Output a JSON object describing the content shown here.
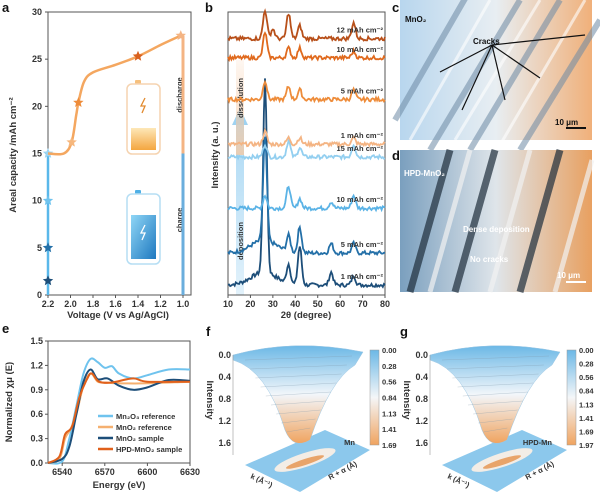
{
  "panels": {
    "a": "a",
    "b": "b",
    "c": "c",
    "d": "d",
    "e": "e",
    "f": "f",
    "g": "g"
  },
  "chart_data": [
    {
      "id": "a",
      "type": "line",
      "xlabel": "Voltage (V vs Ag/AgCl)",
      "ylabel": "Areal capacity /mAh cm⁻²",
      "xlim": [
        2.2,
        1.0
      ],
      "ylim": [
        0,
        30
      ],
      "xticks": [
        "2.2",
        "2.0",
        "1.8",
        "1.6",
        "1.4",
        "1.2",
        "1.0"
      ],
      "yticks": [
        "0",
        "5",
        "10",
        "15",
        "20",
        "25",
        "30"
      ],
      "annotations": {
        "discharge": "discharge",
        "charge": "charge"
      },
      "series": [
        {
          "name": "charge",
          "color": "#5ab8ea",
          "points": [
            [
              2.2,
              0
            ],
            [
              2.2,
              15
            ]
          ],
          "stars": [
            [
              2.2,
              1.5,
              "#1d4e79"
            ],
            [
              2.2,
              5,
              "#2470a8"
            ],
            [
              2.2,
              10,
              "#6fc3ee"
            ],
            [
              2.2,
              15,
              "#9bd4f2"
            ]
          ]
        },
        {
          "name": "discharge",
          "color": "#f4a760",
          "points": [
            [
              2.2,
              15
            ],
            [
              2.06,
              15
            ],
            [
              1.99,
              16.2
            ],
            [
              1.95,
              19
            ],
            [
              1.93,
              20.4
            ],
            [
              1.88,
              22.6
            ],
            [
              1.8,
              23.6
            ],
            [
              1.6,
              24.4
            ],
            [
              1.4,
              25.3
            ],
            [
              1.2,
              26.5
            ],
            [
              1.02,
              27.5
            ]
          ],
          "stars": [
            [
              1.99,
              16.2,
              "#f6b77d"
            ],
            [
              1.93,
              20.4,
              "#ee8c3a"
            ],
            [
              1.4,
              25.3,
              "#d9611e"
            ],
            [
              1.02,
              27.5,
              "#f4b483"
            ]
          ]
        }
      ]
    },
    {
      "id": "b",
      "type": "line",
      "xlabel": "2θ (degree)",
      "ylabel": "Intensity (a. u.)",
      "xlim": [
        10,
        80
      ],
      "xticks": [
        "10",
        "20",
        "30",
        "40",
        "50",
        "60",
        "70",
        "80"
      ],
      "annotations": {
        "dissolution": "dissolution",
        "deposition": "deposition"
      },
      "series": [
        {
          "name": "1 mAh cm⁻²",
          "process": "deposition",
          "color": "#1d4e79",
          "offset": 0,
          "peaks": [
            [
              26.5,
              60
            ],
            [
              37,
              6
            ],
            [
              42,
              12
            ],
            [
              56,
              4
            ],
            [
              66,
              3
            ]
          ]
        },
        {
          "name": "5 mAh cm⁻²",
          "process": "deposition",
          "color": "#2470a8",
          "offset": 10,
          "peaks": [
            [
              26.5,
              32
            ],
            [
              37,
              5
            ],
            [
              42,
              8
            ],
            [
              56,
              3
            ],
            [
              66,
              3
            ]
          ]
        },
        {
          "name": "10 mAh cm⁻²",
          "process": "deposition",
          "color": "#5bb3e6",
          "offset": 24,
          "peaks": [
            [
              26.5,
              4
            ],
            [
              37,
              7
            ],
            [
              42,
              3
            ],
            [
              56,
              2
            ],
            [
              66,
              4
            ]
          ]
        },
        {
          "name": "15 mAh cm⁻²",
          "process": "deposition",
          "color": "#93cff0",
          "offset": 40,
          "peaks": [
            [
              26.5,
              4
            ],
            [
              37,
              5
            ],
            [
              42,
              3
            ],
            [
              66,
              4
            ]
          ]
        },
        {
          "name": "1 mAh cm⁻²",
          "process": "dissolution",
          "color": "#f4b483",
          "offset": 44,
          "peaks": [
            [
              26.5,
              4
            ],
            [
              37,
              2
            ],
            [
              42,
              2
            ],
            [
              66,
              2
            ]
          ]
        },
        {
          "name": "5 mAh cm⁻²",
          "process": "dissolution",
          "color": "#ee8c3a",
          "offset": 58,
          "peaks": [
            [
              26.5,
              6
            ],
            [
              37,
              4
            ],
            [
              42,
              3
            ],
            [
              66,
              3
            ]
          ]
        },
        {
          "name": "10 mAh cm⁻²",
          "process": "dissolution",
          "color": "#e06a1e",
          "offset": 71,
          "peaks": [
            [
              26.5,
              8
            ],
            [
              37,
              3
            ],
            [
              42,
              3
            ],
            [
              66,
              2
            ]
          ]
        },
        {
          "name": "12 mAh cm⁻²",
          "process": "dissolution",
          "color": "#b8501a",
          "offset": 77,
          "peaks": [
            [
              26.5,
              9
            ],
            [
              30,
              3
            ],
            [
              37,
              8
            ],
            [
              42,
              4
            ],
            [
              66,
              5
            ]
          ]
        }
      ]
    },
    {
      "id": "e",
      "type": "line",
      "xlabel": "Energy (eV)",
      "ylabel": "Normalized χμ (E)",
      "xlim": [
        6530,
        6630
      ],
      "ylim": [
        0,
        1.5
      ],
      "xticks": [
        "6540",
        "6570",
        "6600",
        "6630"
      ],
      "yticks": [
        "0.0",
        "0.3",
        "0.6",
        "0.9",
        "1.2",
        "1.5"
      ],
      "legend": "bottom-right",
      "series": [
        {
          "name": "Mn₂O₃ reference",
          "color": "#6fc3ee",
          "points": [
            [
              6530,
              0
            ],
            [
              6540,
              0.02
            ],
            [
              6545,
              0.3
            ],
            [
              6550,
              0.7
            ],
            [
              6555,
              1.1
            ],
            [
              6560,
              1.28
            ],
            [
              6565,
              1.24
            ],
            [
              6570,
              1.17
            ],
            [
              6575,
              1.19
            ],
            [
              6580,
              1.1
            ],
            [
              6590,
              1.04
            ],
            [
              6600,
              1.08
            ],
            [
              6615,
              1.15
            ],
            [
              6630,
              1.15
            ]
          ]
        },
        {
          "name": "MnO₂ reference",
          "color": "#f5b070",
          "points": [
            [
              6530,
              0
            ],
            [
              6538,
              0.05
            ],
            [
              6542,
              0.3
            ],
            [
              6546,
              0.42
            ],
            [
              6550,
              0.6
            ],
            [
              6555,
              0.95
            ],
            [
              6560,
              1.1
            ],
            [
              6565,
              1.0
            ],
            [
              6570,
              0.99
            ],
            [
              6580,
              0.98
            ],
            [
              6600,
              0.98
            ],
            [
              6630,
              1.0
            ]
          ]
        },
        {
          "name": "MnO₂ sample",
          "color": "#1d4e79",
          "points": [
            [
              6530,
              0
            ],
            [
              6540,
              0.05
            ],
            [
              6545,
              0.2
            ],
            [
              6550,
              0.6
            ],
            [
              6555,
              1.0
            ],
            [
              6560,
              1.15
            ],
            [
              6565,
              1.03
            ],
            [
              6572,
              1.04
            ],
            [
              6580,
              0.95
            ],
            [
              6590,
              0.9
            ],
            [
              6600,
              0.93
            ],
            [
              6615,
              1.02
            ],
            [
              6630,
              1.01
            ]
          ]
        },
        {
          "name": "HPD-MnO₂ sample",
          "color": "#e0601b",
          "points": [
            [
              6530,
              0
            ],
            [
              6538,
              0.08
            ],
            [
              6542,
              0.35
            ],
            [
              6547,
              0.45
            ],
            [
              6552,
              0.8
            ],
            [
              6558,
              1.05
            ],
            [
              6561,
              1.1
            ],
            [
              6566,
              1.0
            ],
            [
              6575,
              0.99
            ],
            [
              6590,
              1.04
            ],
            [
              6600,
              1.0
            ],
            [
              6630,
              1.0
            ]
          ]
        }
      ]
    },
    {
      "id": "f",
      "type": "heatmap",
      "label": "Mn",
      "zlabel": "Intensity",
      "zticks": [
        "0.0",
        "0.4",
        "0.8",
        "1.2",
        "1.6"
      ],
      "colorbar": [
        "0.00",
        "0.28",
        "0.56",
        "0.84",
        "1.13",
        "1.41",
        "1.69"
      ],
      "axis_x": "k (Å⁻¹)",
      "axis_y": "R + α (Å)"
    },
    {
      "id": "g",
      "type": "heatmap",
      "label": "HPD-Mn",
      "zlabel": "Intensity",
      "zticks": [
        "0.0",
        "0.4",
        "0.8",
        "1.2",
        "1.6"
      ],
      "colorbar": [
        "0.00",
        "0.28",
        "0.56",
        "0.84",
        "1.13",
        "1.41",
        "1.69",
        "1.97"
      ],
      "axis_x": "k (Å⁻¹)",
      "axis_y": "R + α (Å)"
    }
  ],
  "images": {
    "c": {
      "label": "MnO₂",
      "annotation": "Cracks",
      "scale": "10 μm"
    },
    "d": {
      "label": "HPD-MnO₂",
      "annotation1": "Dense deposition",
      "annotation2": "No cracks",
      "scale": "10 μm"
    }
  }
}
